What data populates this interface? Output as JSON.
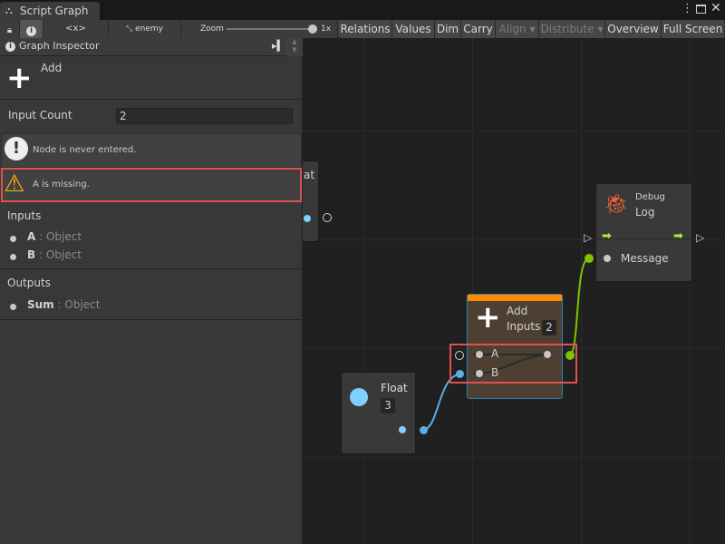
{
  "window": {
    "tab_title": "Script Graph",
    "icon": "hierarchy-icon"
  },
  "toolbar": {
    "graph_name": "enemy",
    "zoom_label": "Zoom",
    "zoom_value": "1x",
    "zoom_level": 1,
    "code_label": "<x>",
    "buttons": [
      {
        "label": "Relations"
      },
      {
        "label": "Values"
      },
      {
        "label": "Dim"
      },
      {
        "label": "Carry"
      },
      {
        "label": "Align ▾",
        "disabled": true
      },
      {
        "label": "Distribute ▾",
        "disabled": true
      },
      {
        "label": "Overview"
      },
      {
        "label": "Full Screen"
      }
    ]
  },
  "inspector": {
    "title": "Graph Inspector",
    "node_title": "Add",
    "input_count_label": "Input Count",
    "input_count_value": "2",
    "messages": [
      {
        "text": "Node is never entered.",
        "type": "info"
      },
      {
        "text": "A is missing.",
        "type": "warning"
      }
    ],
    "inputs_header": "Inputs",
    "inputs": [
      {
        "name": "A",
        "type": ": Object"
      },
      {
        "name": "B",
        "type": ": Object"
      }
    ],
    "outputs_header": "Outputs",
    "outputs": [
      {
        "name": "Sum",
        "type": ": Object"
      }
    ]
  },
  "graph": {
    "partial_node_text": "at",
    "add_node": {
      "title": "Add",
      "inputs_label": "Inputs",
      "inputs_value": "2",
      "ports": [
        "A",
        "B"
      ],
      "header_color": "#ff8a00"
    },
    "float_node": {
      "title": "Float",
      "value": "3",
      "port_color": "#7fd0ff"
    },
    "debug_node": {
      "category": "Debug",
      "title": "Log",
      "port": "Message",
      "icon_color": "#f4623a"
    },
    "colors": {
      "float_edge": "#5aaee6",
      "object_edge": "#7ec300",
      "highlight": "#e05252"
    }
  }
}
